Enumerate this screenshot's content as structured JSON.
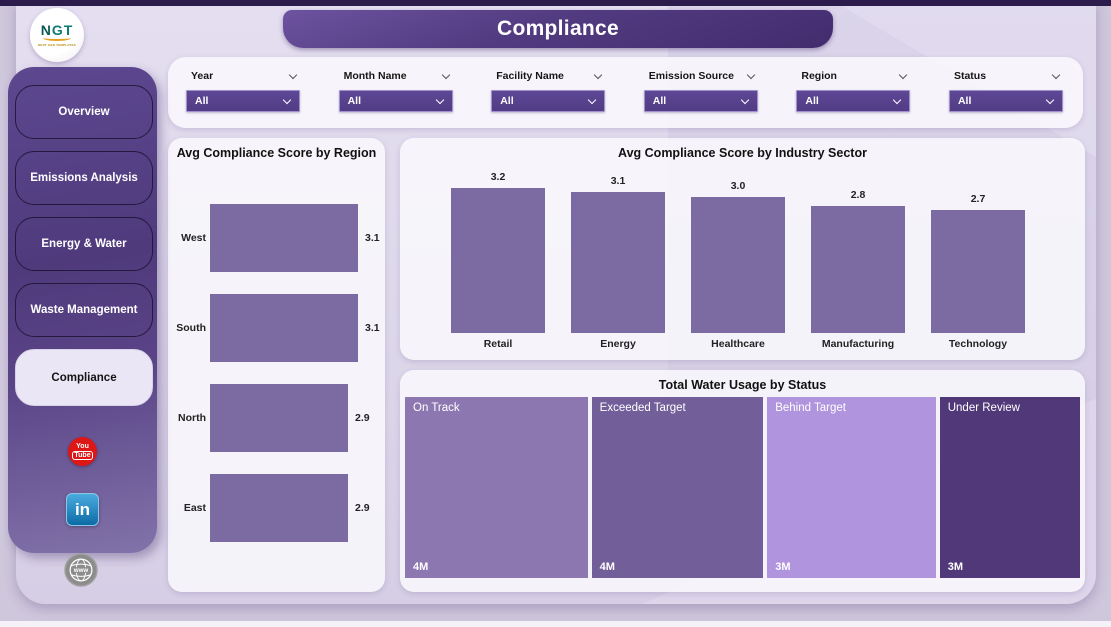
{
  "logo": {
    "text": "NGT",
    "subtext": "NEXT GEN TEMPLATES"
  },
  "header": {
    "title": "Compliance"
  },
  "sidebar": {
    "items": [
      {
        "label": "Overview",
        "active": false
      },
      {
        "label": "Emissions Analysis",
        "active": false
      },
      {
        "label": "Energy & Water",
        "active": false
      },
      {
        "label": "Waste Management",
        "active": false
      },
      {
        "label": "Compliance",
        "active": true
      }
    ]
  },
  "icons": {
    "social": [
      "youtube-icon",
      "linkedin-icon"
    ],
    "footer": [
      "globe-icon"
    ],
    "filter_dropdown": "chevron-down-icon"
  },
  "filters": [
    {
      "label": "Year",
      "value": "All"
    },
    {
      "label": "Month Name",
      "value": "All"
    },
    {
      "label": "Facility Name",
      "value": "All"
    },
    {
      "label": "Emission Source",
      "value": "All"
    },
    {
      "label": "Region",
      "value": "All"
    },
    {
      "label": "Status",
      "value": "All"
    }
  ],
  "colors": {
    "bar": "#7c6ba3",
    "accent_dark_purple": "#523b80",
    "sidebar_purple": "#5a4487",
    "background_lavender": "#ddd7ea",
    "youtube_red": "#dd1616",
    "linkedin_blue": "#0d6ba6"
  },
  "chart_data": [
    {
      "type": "bar",
      "orientation": "horizontal",
      "title": "Avg Compliance Score by Region",
      "categories": [
        "West",
        "South",
        "North",
        "East"
      ],
      "values": [
        3.1,
        3.1,
        2.9,
        2.9
      ],
      "xlim": [
        0,
        3.2
      ],
      "grid": false,
      "value_labels": true
    },
    {
      "type": "bar",
      "orientation": "vertical",
      "title": "Avg Compliance Score by Industry Sector",
      "categories": [
        "Retail",
        "Energy",
        "Healthcare",
        "Manufacturing",
        "Technology"
      ],
      "values": [
        3.2,
        3.1,
        3.0,
        2.8,
        2.7
      ],
      "ylim": [
        0,
        3.4
      ],
      "grid": false,
      "value_labels": true
    },
    {
      "type": "treemap",
      "title": "Total Water Usage by Status",
      "items": [
        {
          "label": "On Track",
          "value": "4M",
          "color": "#8d77b0",
          "weight": 181
        },
        {
          "label": "Exceeded Target",
          "value": "4M",
          "color": "#725e99",
          "weight": 170
        },
        {
          "label": "Behind Target",
          "value": "3M",
          "color": "#b094dd",
          "weight": 167
        },
        {
          "label": "Under Review",
          "value": "3M",
          "color": "#513879",
          "weight": 139
        }
      ]
    }
  ]
}
